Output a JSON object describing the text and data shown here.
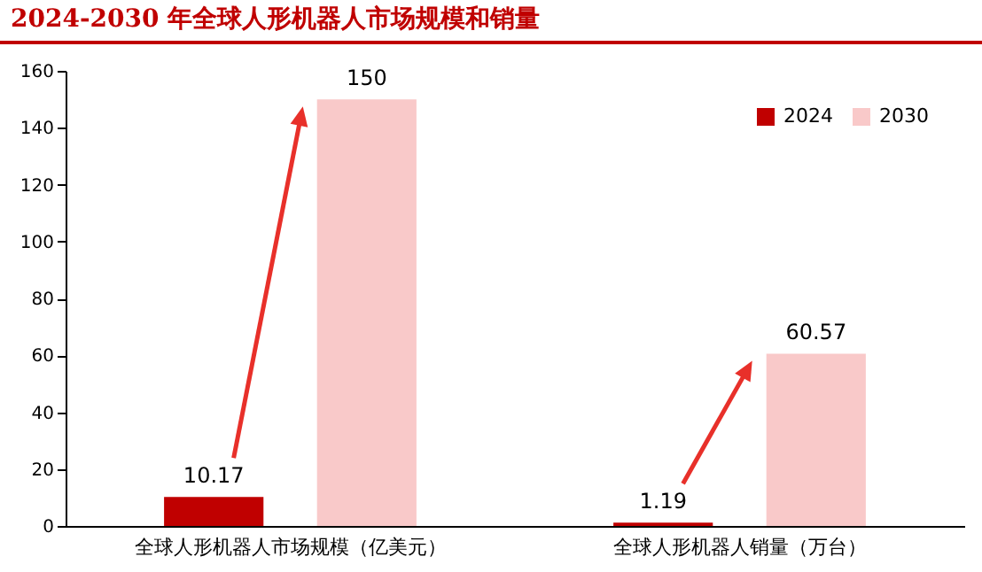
{
  "chart_data": {
    "type": "bar",
    "title": "2024-2030 年全球人形机器人市场规模和销量",
    "categories": [
      "全球人形机器人市场规模（亿美元）",
      "全球人形机器人销量（万台）"
    ],
    "series": [
      {
        "name": "2024",
        "color": "#c00000",
        "values": [
          10.17,
          1.19
        ]
      },
      {
        "name": "2030",
        "color": "#f9c9c9",
        "values": [
          150,
          60.57
        ]
      }
    ],
    "ylim": [
      0,
      160
    ],
    "yticks": [
      0,
      20,
      40,
      60,
      80,
      100,
      120,
      140,
      160
    ],
    "data_labels": true,
    "legend": "top right",
    "grid": false
  }
}
